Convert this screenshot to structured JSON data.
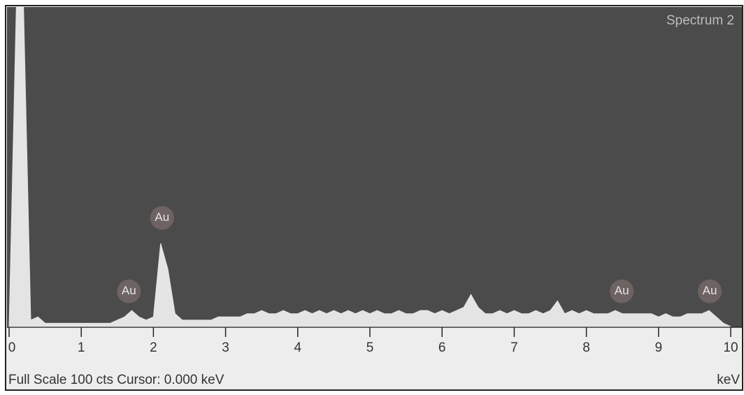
{
  "chart_data": {
    "type": "area",
    "title": "Spectrum 2",
    "x_label": "keV",
    "status": "Full Scale 100 cts  Cursor: 0.000 keV",
    "x": [
      0,
      0.1,
      0.2,
      0.3,
      0.4,
      0.5,
      0.6,
      0.7,
      0.8,
      0.9,
      1,
      1.1,
      1.2,
      1.3,
      1.4,
      1.5,
      1.6,
      1.7,
      1.8,
      1.9,
      2,
      2.1,
      2.2,
      2.3,
      2.4,
      2.5,
      2.6,
      2.7,
      2.8,
      2.9,
      3,
      3.1,
      3.2,
      3.3,
      3.4,
      3.5,
      3.6,
      3.7,
      3.8,
      3.9,
      4,
      4.1,
      4.2,
      4.3,
      4.4,
      4.5,
      4.6,
      4.7,
      4.8,
      4.9,
      5,
      5.1,
      5.2,
      5.3,
      5.4,
      5.5,
      5.6,
      5.7,
      5.8,
      5.9,
      6,
      6.1,
      6.2,
      6.3,
      6.4,
      6.5,
      6.6,
      6.7,
      6.8,
      6.9,
      7,
      7.1,
      7.2,
      7.3,
      7.4,
      7.5,
      7.6,
      7.7,
      7.8,
      7.9,
      8,
      8.1,
      8.2,
      8.3,
      8.4,
      8.5,
      8.6,
      8.7,
      8.8,
      8.9,
      9,
      9.1,
      9.2,
      9.3,
      9.4,
      9.5,
      9.6,
      9.7,
      9.8,
      9.9,
      10
    ],
    "values": [
      0,
      100,
      100,
      2,
      3,
      1,
      1,
      1,
      1,
      1,
      1,
      1,
      1,
      1,
      1,
      2,
      3,
      5,
      3,
      2,
      3,
      26,
      18,
      4,
      2,
      2,
      2,
      2,
      2,
      3,
      3,
      3,
      3,
      4,
      4,
      5,
      4,
      4,
      5,
      4,
      4,
      5,
      4,
      5,
      4,
      5,
      4,
      5,
      4,
      5,
      4,
      5,
      4,
      4,
      5,
      4,
      4,
      5,
      5,
      4,
      5,
      4,
      5,
      6,
      10,
      6,
      4,
      4,
      5,
      4,
      5,
      4,
      4,
      5,
      4,
      5,
      8,
      4,
      5,
      4,
      5,
      4,
      4,
      4,
      5,
      4,
      4,
      4,
      4,
      4,
      3,
      4,
      3,
      3,
      4,
      4,
      4,
      5,
      3,
      1,
      0
    ],
    "annotations": [
      {
        "label": "Au",
        "x": 2.12,
        "y": 34
      },
      {
        "label": "Au",
        "x": 1.66,
        "y": 11
      },
      {
        "label": "Au",
        "x": 8.49,
        "y": 11
      },
      {
        "label": "Au",
        "x": 9.71,
        "y": 11
      }
    ],
    "xlim": [
      0,
      10
    ],
    "ylim": [
      0,
      100
    ],
    "xticks": [
      0,
      1,
      2,
      3,
      4,
      5,
      6,
      7,
      8,
      9,
      10
    ],
    "color": "#e4e4e4",
    "background": "#4b4b4b"
  }
}
